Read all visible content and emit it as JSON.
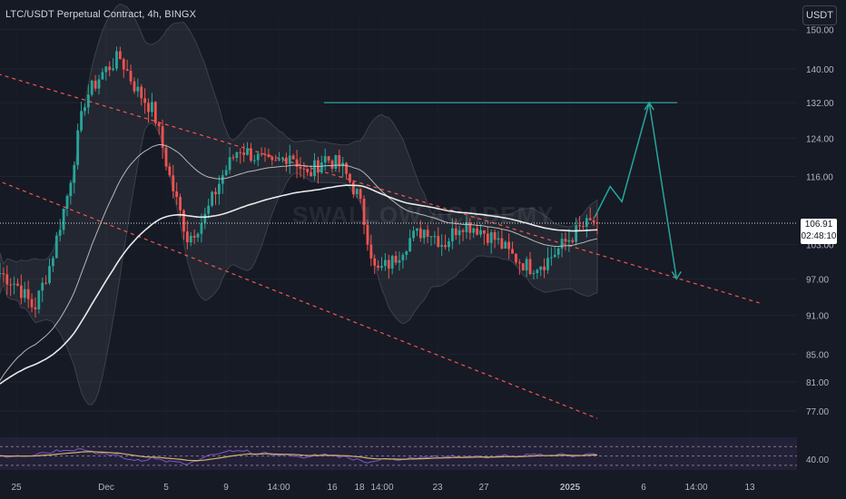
{
  "header": {
    "title": "LTC/USDT Perpetual Contract, 4h, BINGX",
    "currency_button": "USDT",
    "watermark": "SWALLOW ACADEMY"
  },
  "price_tag": {
    "price": "106.91",
    "countdown": "02:48:10"
  },
  "colors": {
    "background": "#161a25",
    "up_candle": "#26a69a",
    "down_candle": "#ef5350",
    "target_line": "#26a69a",
    "channel": "#f4564f",
    "ema_fast": "#c8c8c8",
    "ema_slow": "#ffffff",
    "rsi": "#7e57c2",
    "rsi_ma": "#d4b26a"
  },
  "chart_data": {
    "type": "candlestick",
    "symbol": "LTC/USDT",
    "timeframe": "4h",
    "y_ticks": [
      "150.00",
      "140.00",
      "132.00",
      "124.00",
      "116.00",
      "103.00",
      "97.00",
      "91.00",
      "85.00",
      "81.00",
      "77.00"
    ],
    "y_log_range": [
      74,
      153
    ],
    "x_ticks": [
      "25",
      "Dec",
      "5",
      "9",
      "14:00",
      "16",
      "18",
      "14:00",
      "23",
      "27",
      "2025",
      "6",
      "14:00",
      "13"
    ],
    "x_tick_dates": [
      "2024-11-25",
      "2024-12-01",
      "2024-12-05",
      "2024-12-09",
      "2024-12-12T14:00",
      "2024-12-16",
      "2024-12-18",
      "2024-12-20T14:00",
      "2024-12-23",
      "2024-12-27",
      "2025-01-01",
      "2025-01-06",
      "2025-01-09T14:00",
      "2025-01-13"
    ],
    "last_price": 106.91,
    "current_price_line": 106.91,
    "price_path": [
      [
        0,
        98
      ],
      [
        4,
        96
      ],
      [
        8,
        92
      ],
      [
        12,
        100
      ],
      [
        16,
        113
      ],
      [
        20,
        133
      ],
      [
        24,
        139
      ],
      [
        28,
        143
      ],
      [
        32,
        135
      ],
      [
        36,
        130
      ],
      [
        40,
        115
      ],
      [
        44,
        104
      ],
      [
        48,
        108
      ],
      [
        52,
        116
      ],
      [
        56,
        122
      ],
      [
        60,
        120
      ],
      [
        64,
        118
      ],
      [
        68,
        121
      ],
      [
        72,
        116
      ],
      [
        76,
        120
      ],
      [
        80,
        118
      ],
      [
        84,
        112
      ],
      [
        88,
        98
      ],
      [
        92,
        100
      ],
      [
        96,
        104
      ],
      [
        100,
        106
      ],
      [
        104,
        103
      ],
      [
        108,
        107
      ],
      [
        112,
        106
      ],
      [
        116,
        104
      ],
      [
        120,
        101
      ],
      [
        124,
        99
      ],
      [
        128,
        100
      ],
      [
        132,
        103
      ],
      [
        136,
        106
      ],
      [
        140,
        107.5
      ]
    ],
    "rsi_scale_label": "40.00",
    "rsi_bands": [
      70,
      50,
      30
    ],
    "annotations": {
      "target_level": 132.0,
      "target_path": [
        [
          0,
          108
        ],
        [
          4,
          114
        ],
        [
          7,
          111
        ],
        [
          14,
          132
        ],
        [
          21,
          97
        ]
      ],
      "descending_channel": [
        {
          "from": [
            -20,
            145
          ],
          "to": [
            178,
            93
          ]
        },
        {
          "from": [
            -20,
            122
          ],
          "to": [
            140,
            76
          ]
        }
      ]
    }
  }
}
